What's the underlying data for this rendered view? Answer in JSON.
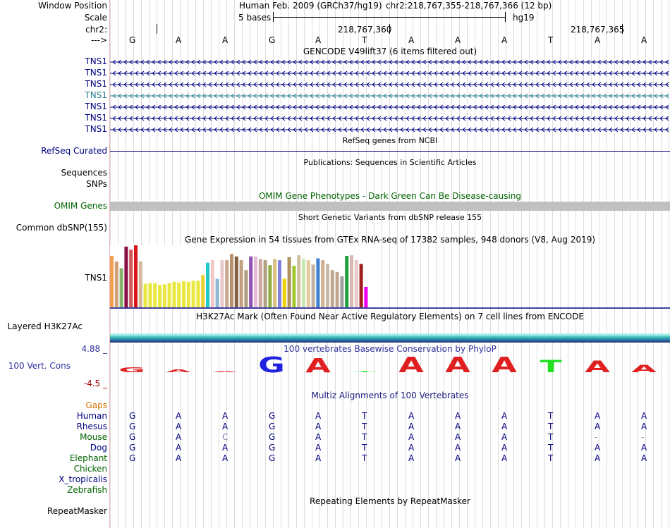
{
  "header": {
    "window_position_label": "Window Position",
    "scale_label": "Scale",
    "chr_label": "chr2:",
    "arrow_label": "--->",
    "assembly": "Human Feb. 2009 (GRCh37/hg19)",
    "position": "chr2:218,767,355-218,767,366 (12 bp)",
    "scale_text": "5 bases",
    "db": "hg19",
    "coord1": "218,767,360",
    "coord2": "218,767,365"
  },
  "bases": [
    "G",
    "A",
    "A",
    "G",
    "A",
    "T",
    "A",
    "A",
    "A",
    "T",
    "A",
    "A"
  ],
  "gencode": {
    "title": "GENCODE V49lift37 (6 items filtered out)",
    "genes": [
      "TNS1",
      "TNS1",
      "TNS1",
      "TNS1",
      "TNS1",
      "TNS1",
      "TNS1"
    ],
    "colors": [
      "#000080",
      "#000080",
      "#000080",
      "#2c8090",
      "#000080",
      "#000080",
      "#000080"
    ]
  },
  "refseq": {
    "label": "RefSeq Curated",
    "title": "RefSeq genes from NCBI"
  },
  "publications": {
    "title": "Publications: Sequences in Scientific Articles",
    "labels": [
      "Sequences",
      "SNPs"
    ]
  },
  "omim": {
    "title": "OMIM Gene Phenotypes - Dark Green Can Be Disease-causing",
    "label": "OMIM Genes"
  },
  "dbsnp": {
    "title": "Short Genetic Variants from dbSNP release 155",
    "label": "Common dbSNP(155)"
  },
  "gtex": {
    "title": "Gene Expression in 54 tissues from GTEx RNA-seq of 17382 samples, 948 donors (V8, Aug 2019)",
    "label": "TNS1",
    "values": [
      0.83,
      0.74,
      0.63,
      0.98,
      0.93,
      1.0,
      0.74,
      0.38,
      0.39,
      0.39,
      0.36,
      0.37,
      0.39,
      0.41,
      0.4,
      0.42,
      0.41,
      0.43,
      0.43,
      0.52,
      0.72,
      0.76,
      0.46,
      0.76,
      0.76,
      0.86,
      0.82,
      0.76,
      0.6,
      0.82,
      0.82,
      0.78,
      0.76,
      0.68,
      0.78,
      0.76,
      0.46,
      0.81,
      0.67,
      0.84,
      0.78,
      0.76,
      0.69,
      0.79,
      0.76,
      0.7,
      0.6,
      0.57,
      0.5,
      0.83,
      0.84,
      0.76,
      0.7,
      0.33
    ],
    "colors": [
      "#f2a050",
      "#d0a07a",
      "#86b26a",
      "#8a0f45",
      "#d05a5a",
      "#d81818",
      "#d4b89a",
      "#e8e840",
      "#e8e840",
      "#e8e840",
      "#e8e840",
      "#e8e840",
      "#e8e840",
      "#e8e840",
      "#e8e840",
      "#e8e840",
      "#e8e840",
      "#e8e840",
      "#e8e840",
      "#e8d030",
      "#20c8c8",
      "#f0c8c8",
      "#90b8d8",
      "#e8c8c8",
      "#c8a890",
      "#b89070",
      "#806040",
      "#c0a080",
      "#b0a080",
      "#9050b0",
      "#e8b8d8",
      "#c8a8a0",
      "#b0a080",
      "#90b040",
      "#d8c080",
      "#8080e0",
      "#f0d000",
      "#b09060",
      "#a0c830",
      "#d0c0a0",
      "#c8e8b0",
      "#e8c8a0",
      "#c0b0a0",
      "#4080d0",
      "#d0b090",
      "#c8b8a8",
      "#c0a890",
      "#c0a890",
      "#a0a0a0",
      "#20a040",
      "#d8b8b0",
      "#e8c8c8",
      "#a02020",
      "#f000f0"
    ]
  },
  "h3k27ac": {
    "title": "H3K27Ac Mark (Often Found Near Active Regulatory Elements) on 7 cell lines from ENCODE",
    "label": "Layered H3K27Ac"
  },
  "cons": {
    "title": "100 vertebrates Basewise Conservation by PhyloP",
    "label": "100 Vert. Cons",
    "max": "4.88 _",
    "min": "-4.5 _",
    "heights": [
      0.3,
      0.15,
      0.05,
      0.95,
      0.85,
      0.05,
      0.95,
      0.95,
      0.95,
      0.75,
      0.7,
      0.45
    ],
    "colors": [
      "#e02020",
      "#e02020",
      "#e02020",
      "#2020e0",
      "#e02020",
      "#20e020",
      "#e02020",
      "#e02020",
      "#e02020",
      "#20e020",
      "#e02020",
      "#e02020"
    ]
  },
  "multiz": {
    "title": "Multiz Alignments of 100 Vertebrates",
    "gaps_label": "Gaps",
    "species": [
      {
        "name": "Human",
        "color": "#000080",
        "seq": [
          "G",
          "A",
          "A",
          "G",
          "A",
          "T",
          "A",
          "A",
          "A",
          "T",
          "A",
          "A"
        ]
      },
      {
        "name": "Rhesus",
        "color": "#000080",
        "seq": [
          "G",
          "A",
          "A",
          "G",
          "A",
          "T",
          "A",
          "A",
          "A",
          "T",
          "A",
          "A"
        ]
      },
      {
        "name": "Mouse",
        "color": "#006400",
        "seq": [
          "G",
          "A",
          "C",
          "G",
          "A",
          "T",
          "A",
          "A",
          "A",
          "T",
          "-",
          "-"
        ]
      },
      {
        "name": "Dog",
        "color": "#000080",
        "seq": [
          "G",
          "A",
          "A",
          "G",
          "A",
          "T",
          "A",
          "A",
          "A",
          "T",
          "A",
          "A"
        ]
      },
      {
        "name": "Elephant",
        "color": "#006400",
        "seq": [
          "G",
          "A",
          "A",
          "G",
          "A",
          "T",
          "A",
          "A",
          "A",
          "T",
          "A",
          "A"
        ]
      },
      {
        "name": "Chicken",
        "color": "#006400",
        "seq": []
      },
      {
        "name": "X_tropicalis",
        "color": "#000080",
        "seq": []
      },
      {
        "name": "Zebrafish",
        "color": "#006400",
        "seq": []
      }
    ]
  },
  "repeatmasker": {
    "title": "Repeating Elements by RepeatMasker",
    "label": "RepeatMasker"
  }
}
